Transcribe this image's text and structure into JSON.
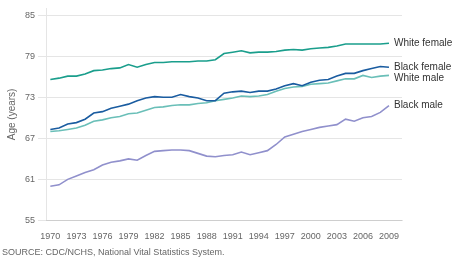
{
  "chart_data": {
    "type": "line",
    "y_label": "Age (years)",
    "annotations": [
      "SOURCE: CDC/NCHS, National Vital Statistics System."
    ],
    "x": [
      1970,
      1971,
      1972,
      1973,
      1974,
      1975,
      1976,
      1977,
      1978,
      1979,
      1980,
      1981,
      1982,
      1983,
      1984,
      1985,
      1986,
      1987,
      1988,
      1989,
      1990,
      1991,
      1992,
      1993,
      1994,
      1995,
      1996,
      1997,
      1998,
      1999,
      2000,
      2001,
      2002,
      2003,
      2004,
      2005,
      2006,
      2007,
      2008,
      2009
    ],
    "series": [
      {
        "name": "White female",
        "color": "#1a9e8c",
        "values": [
          75.6,
          75.8,
          76.1,
          76.1,
          76.4,
          76.9,
          77.0,
          77.2,
          77.3,
          77.8,
          77.4,
          77.8,
          78.1,
          78.1,
          78.2,
          78.2,
          78.2,
          78.3,
          78.3,
          78.5,
          79.4,
          79.6,
          79.8,
          79.5,
          79.6,
          79.6,
          79.7,
          79.9,
          80.0,
          79.9,
          80.1,
          80.2,
          80.3,
          80.5,
          80.8,
          80.8,
          80.8,
          80.8,
          80.8,
          80.9
        ]
      },
      {
        "name": "Black female",
        "color": "#1a5ca0",
        "values": [
          68.3,
          68.5,
          69.1,
          69.3,
          69.8,
          70.7,
          70.9,
          71.4,
          71.7,
          72.0,
          72.5,
          72.9,
          73.1,
          73.0,
          73.0,
          73.4,
          73.1,
          72.9,
          72.5,
          72.5,
          73.6,
          73.8,
          73.9,
          73.7,
          73.9,
          73.9,
          74.2,
          74.7,
          75.0,
          74.7,
          75.2,
          75.5,
          75.6,
          76.1,
          76.5,
          76.5,
          76.9,
          77.2,
          77.5,
          77.4
        ]
      },
      {
        "name": "White male",
        "color": "#6abfb8",
        "values": [
          68.0,
          68.1,
          68.3,
          68.5,
          68.9,
          69.5,
          69.7,
          70.0,
          70.2,
          70.6,
          70.7,
          71.1,
          71.5,
          71.6,
          71.8,
          71.9,
          71.9,
          72.1,
          72.2,
          72.5,
          72.7,
          72.9,
          73.2,
          73.1,
          73.2,
          73.4,
          73.9,
          74.3,
          74.5,
          74.6,
          74.9,
          75.0,
          75.1,
          75.4,
          75.7,
          75.7,
          76.2,
          75.9,
          76.1,
          76.2
        ]
      },
      {
        "name": "Black male",
        "color": "#9090cc",
        "values": [
          60.0,
          60.2,
          61.0,
          61.5,
          62.0,
          62.4,
          63.1,
          63.5,
          63.7,
          64.0,
          63.8,
          64.5,
          65.1,
          65.2,
          65.3,
          65.3,
          65.2,
          64.8,
          64.4,
          64.3,
          64.5,
          64.6,
          65.0,
          64.6,
          64.9,
          65.2,
          66.1,
          67.2,
          67.6,
          68.0,
          68.3,
          68.6,
          68.8,
          69.0,
          69.8,
          69.5,
          70.0,
          70.2,
          70.8,
          71.8
        ]
      }
    ],
    "xlim": [
      1969.5,
      2010.5
    ],
    "xticks": [
      1970,
      1973,
      1976,
      1979,
      1982,
      1985,
      1988,
      1991,
      1994,
      1997,
      2000,
      2003,
      2006,
      2009
    ],
    "ylim": [
      55,
      86
    ],
    "yticks": [
      55,
      61,
      67,
      73,
      79,
      85
    ],
    "grid": true
  }
}
